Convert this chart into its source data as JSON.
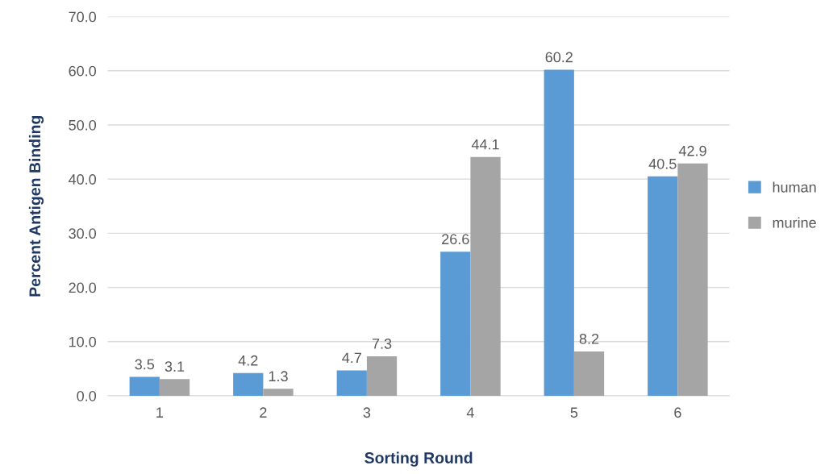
{
  "chart_data": {
    "type": "bar",
    "xlabel": "Sorting Round",
    "ylabel": "Percent Antigen Binding",
    "categories": [
      "1",
      "2",
      "3",
      "4",
      "5",
      "6"
    ],
    "series": [
      {
        "name": "human",
        "color": "#5b9bd5",
        "values": [
          3.5,
          4.2,
          4.7,
          26.6,
          60.2,
          40.5
        ]
      },
      {
        "name": "murine",
        "color": "#a5a5a5",
        "values": [
          3.1,
          1.3,
          7.3,
          44.1,
          8.2,
          42.9
        ]
      }
    ],
    "ylim": [
      0,
      70
    ],
    "yticks": [
      {
        "value": 0,
        "label": "0.0"
      },
      {
        "value": 10,
        "label": "10.0"
      },
      {
        "value": 20,
        "label": "20.0"
      },
      {
        "value": 30,
        "label": "30.0"
      },
      {
        "value": 40,
        "label": "40.0"
      },
      {
        "value": 50,
        "label": "50.0"
      },
      {
        "value": 60,
        "label": "60.0"
      },
      {
        "value": 70,
        "label": "70.0"
      }
    ],
    "grid": "y",
    "legend": "right",
    "data_labels": true
  }
}
